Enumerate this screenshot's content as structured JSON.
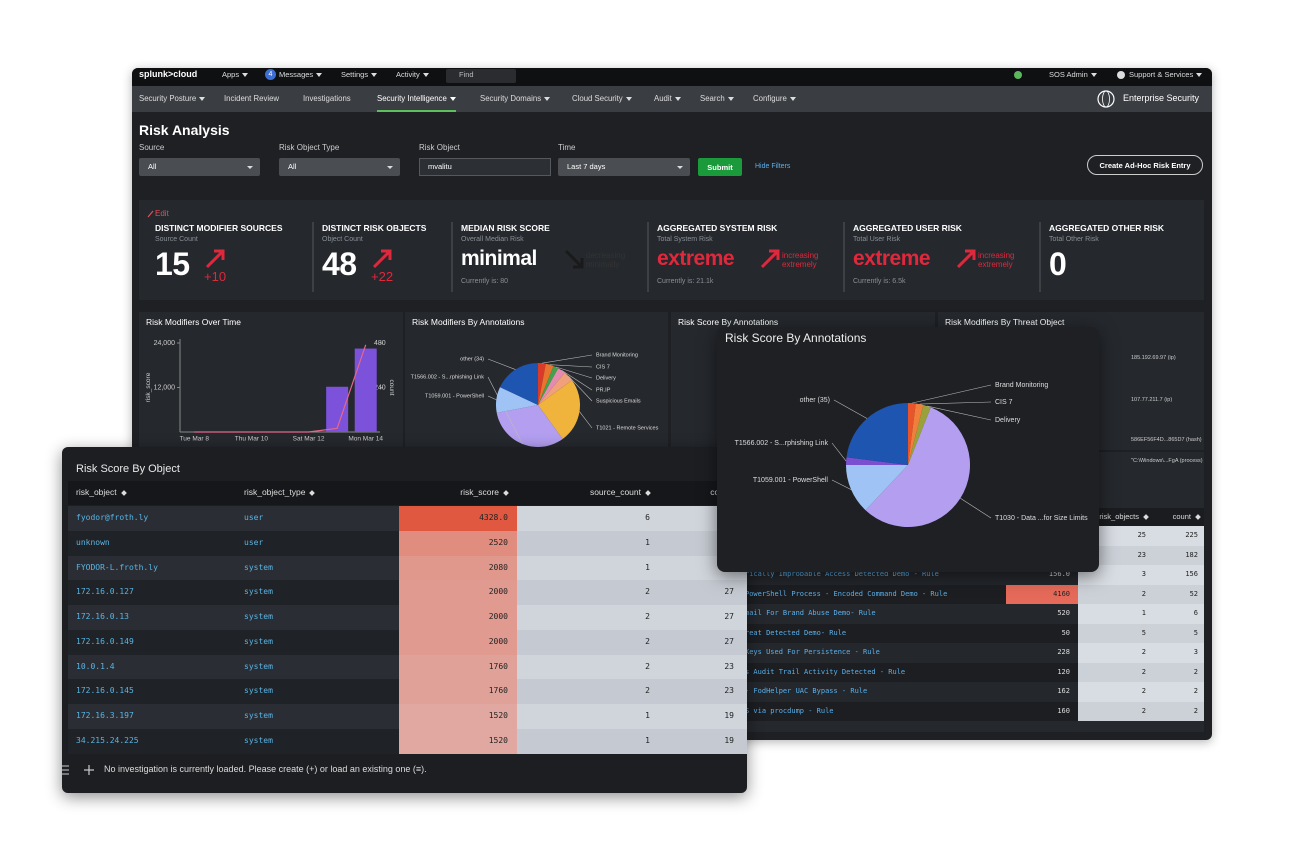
{
  "topbar": {
    "logo": "splunk>cloud",
    "menus": [
      "Apps",
      "Messages",
      "Settings",
      "Activity"
    ],
    "message_count": 4,
    "search": "Find",
    "user": "SOS Admin",
    "support": "Support & Services"
  },
  "nav": {
    "items": [
      "Security Posture",
      "Incident Review",
      "Investigations",
      "Security Intelligence",
      "Security Domains",
      "Cloud Security",
      "Audit",
      "Search",
      "Configure"
    ],
    "active": 3,
    "app": "Enterprise Security"
  },
  "page": {
    "title": "Risk Analysis",
    "filters": [
      {
        "label": "Source",
        "value": "All",
        "kind": "select"
      },
      {
        "label": "Risk Object Type",
        "value": "All",
        "kind": "select"
      },
      {
        "label": "Risk Object",
        "value": "mvalitu",
        "kind": "text"
      },
      {
        "label": "Time",
        "value": "Last 7 days",
        "kind": "select"
      }
    ],
    "submit": "Submit",
    "hide_filters": "Hide Filters",
    "create_entry": "Create Ad-Hoc Risk Entry"
  },
  "summary": {
    "edit": "Edit",
    "kpis": [
      {
        "title": "DISTINCT MODIFIER SOURCES",
        "subtitle": "Source Count",
        "value": 15,
        "value_color": "#ffffff",
        "change": "+10",
        "trend": "up"
      },
      {
        "title": "DISTINCT RISK OBJECTS",
        "subtitle": "Object Count",
        "value": 48,
        "value_color": "#ffffff",
        "change": "+22",
        "trend": "up"
      },
      {
        "title": "MEDIAN RISK SCORE",
        "subtitle": "Overall Median Risk",
        "value": "minimal",
        "value_color": "#ffffff",
        "change": "decreasing minimally",
        "trend": "down",
        "current": "Currently is: 80"
      },
      {
        "title": "AGGREGATED SYSTEM RISK",
        "subtitle": "Total System Risk",
        "value": "extreme",
        "value_color": "#e0283c",
        "change": "increasing extremely",
        "trend": "up",
        "current": "Currently is: 21.1k"
      },
      {
        "title": "AGGREGATED USER RISK",
        "subtitle": "Total User Risk",
        "value": "extreme",
        "value_color": "#e0283c",
        "change": "increasing extremely",
        "trend": "up",
        "current": "Currently is: 6.5k"
      },
      {
        "title": "AGGREGATED OTHER RISK",
        "subtitle": "Total Other Risk",
        "value": 0,
        "value_color": "#ffffff"
      }
    ]
  },
  "panels": [
    {
      "title": "Risk Modifiers Over Time",
      "chart": {
        "type": "bar",
        "categories": [
          "Tue Mar 8",
          null,
          "Thu Mar 10",
          null,
          "Sat Mar 12",
          null,
          "Mon Mar 14"
        ],
        "ylabel": "risk_score",
        "y2label": "count",
        "ylim": [
          0,
          24000
        ],
        "yticks": [
          {
            "value": 12000,
            "label": "12,000"
          },
          {
            "value": 24000,
            "label": "24,000"
          }
        ],
        "y2lim": [
          0,
          480
        ],
        "y2ticks": [
          240,
          480
        ],
        "series": [
          {
            "color": "#7b52d9",
            "values": [
              0,
              0,
              0,
              0,
              0,
              12200,
              22500
            ]
          },
          {
            "color": "#e5668a",
            "type": "line",
            "axis": "y2",
            "values": [
              0,
              0,
              0,
              0,
              0,
              20,
              470
            ]
          }
        ]
      }
    },
    {
      "title": "Risk Modifiers By Annotations",
      "chart": {
        "type": "pie",
        "categories": [
          "Brand Monitoring",
          "CIS 7",
          "Delivery",
          "PR.IP",
          "Suspicious Emails",
          "T1021 - Remote Services",
          "T1566.002 - S...rphishing Link",
          "T1059.001 - PowerShell",
          "other (34)"
        ],
        "values": [
          3,
          3,
          2,
          3,
          4,
          25,
          32,
          10,
          18
        ],
        "colors": [
          "#d93b2b",
          "#e9742d",
          "#44a04a",
          "#e58bb0",
          "#f0a07a",
          "#f0b43c",
          "#b39ef0",
          "#9fc3f5",
          "#1d55b0"
        ]
      }
    },
    {
      "title": "Risk Score By Annotations"
    },
    {
      "title": "Risk Modifiers By Threat Object",
      "labels": [
        "185.192.69.97 (ip)",
        "107.77.211.7 (ip)",
        "586EF56F4D...865D7 (hash)",
        "\"C:\\Windows\\...FgA (process)"
      ]
    }
  ],
  "rules_table": {
    "columns": [
      "risk_objects",
      "count"
    ],
    "highlight_row": 3,
    "rows": [
      [
        null,
        null,
        25,
        225
      ],
      [
        null,
        null,
        23,
        182
      ],
      [
        "rically Improbable Access Detected Demo - Rule",
        "156.0",
        3,
        156
      ],
      [
        "PowerShell Process - Encoded Command Demo - Rule",
        4160,
        2,
        52
      ],
      [
        "mail For Brand Abuse Demo- Rule",
        520,
        1,
        6
      ],
      [
        "reat Detected Demo- Rule",
        50,
        5,
        5
      ],
      [
        "Keys Used For Persistence - Rule",
        228,
        2,
        3
      ],
      [
        "s Audit Trail Activity Detected - Rule",
        120,
        2,
        2
      ],
      [
        "- FodHelper UAC Bypass - Rule",
        162,
        2,
        2
      ],
      [
        "S via procdump - Rule",
        160,
        2,
        2
      ]
    ]
  },
  "object_table": {
    "title": "Risk Score By Object",
    "columns": [
      "risk_object",
      "risk_object_type",
      "risk_score",
      "source_count",
      "count"
    ],
    "rows": [
      [
        "fyodor@froth.ly",
        "user",
        "4328.0",
        6,
        null
      ],
      [
        "unknown",
        "user",
        2520,
        1,
        null
      ],
      [
        "FYODOR-L.froth.ly",
        "system",
        2080,
        1,
        null
      ],
      [
        "172.16.0.127",
        "system",
        2000,
        2,
        27
      ],
      [
        "172.16.0.13",
        "system",
        2000,
        2,
        27
      ],
      [
        "172.16.0.149",
        "system",
        2000,
        2,
        27
      ],
      [
        "10.0.1.4",
        "system",
        1760,
        2,
        23
      ],
      [
        "172.16.0.145",
        "system",
        1760,
        2,
        23
      ],
      [
        "172.16.3.197",
        "system",
        1520,
        1,
        19
      ],
      [
        "34.215.24.225",
        "system",
        1520,
        1,
        19
      ]
    ],
    "footer": "No investigation is currently loaded. Please create (+) or load an existing one (≡)."
  },
  "annotation_popup": {
    "title": "Risk Score By Annotations",
    "chart": {
      "type": "pie",
      "categories": [
        "Brand Monitoring",
        "CIS 7",
        "Delivery",
        "T1030 - Data ...for Size Limits",
        "T1059.001 - PowerShell",
        "T1566.002 - S...rphishing Link",
        "other (35)"
      ],
      "values": [
        2,
        2,
        2,
        56,
        13,
        2,
        23
      ],
      "colors": [
        "#e8552b",
        "#f07f3c",
        "#9aa13a",
        "#b39ef0",
        "#9fc3f5",
        "#7a4fd0",
        "#1d55b0"
      ]
    }
  }
}
